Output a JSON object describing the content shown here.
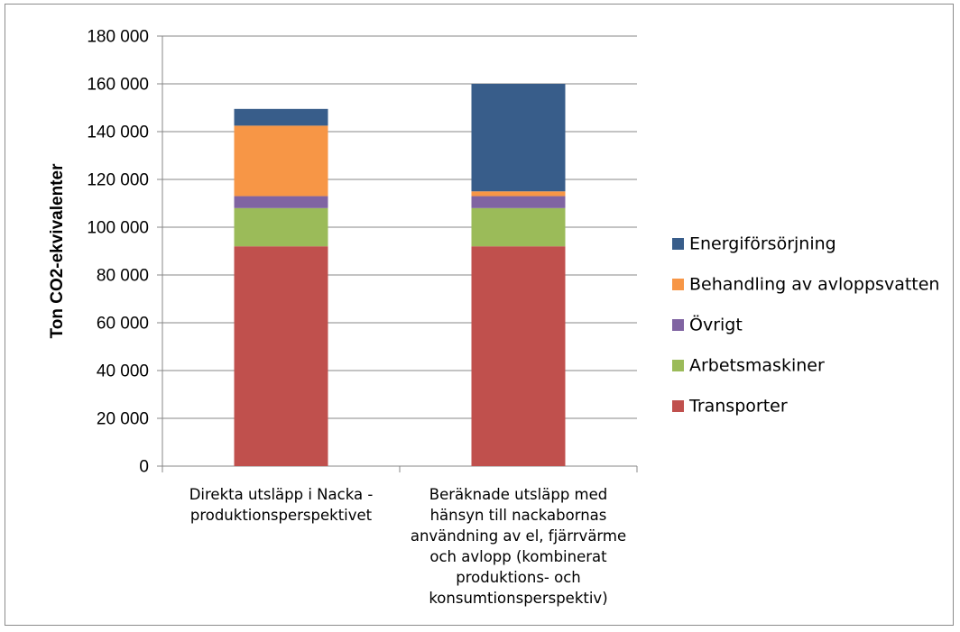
{
  "chart_data": {
    "type": "bar",
    "stacked": true,
    "ylabel": "Ton CO2-ekvivalenter",
    "ylim": [
      0,
      180000
    ],
    "ytick_step": 20000,
    "yticks": [
      "0",
      "20 000",
      "40 000",
      "60 000",
      "80 000",
      "100 000",
      "120 000",
      "140 000",
      "160 000",
      "180 000"
    ],
    "grid": true,
    "legend_position": "right",
    "categories": [
      [
        "Direkta utsläpp i Nacka -",
        "produktionsperspektivet"
      ],
      [
        "Beräknade utsläpp med",
        "hänsyn till nackabornas",
        "användning av el, fjärrvärme",
        "och avlopp (kombinerat",
        "produktions- och",
        "konsumtionsperspektiv)"
      ]
    ],
    "series": [
      {
        "name": "Transporter",
        "color": "#c0504d",
        "values": [
          92000,
          92000
        ]
      },
      {
        "name": "Arbetsmaskiner",
        "color": "#9bbb59",
        "values": [
          16000,
          16000
        ]
      },
      {
        "name": "Övrigt",
        "color": "#8064a2",
        "values": [
          5000,
          5000
        ]
      },
      {
        "name": "Behandling av avloppsvatten",
        "color": "#f79646",
        "values": [
          29500,
          2000
        ]
      },
      {
        "name": "Energiförsörjning",
        "color": "#385d8a",
        "values": [
          7000,
          45000
        ]
      }
    ]
  }
}
